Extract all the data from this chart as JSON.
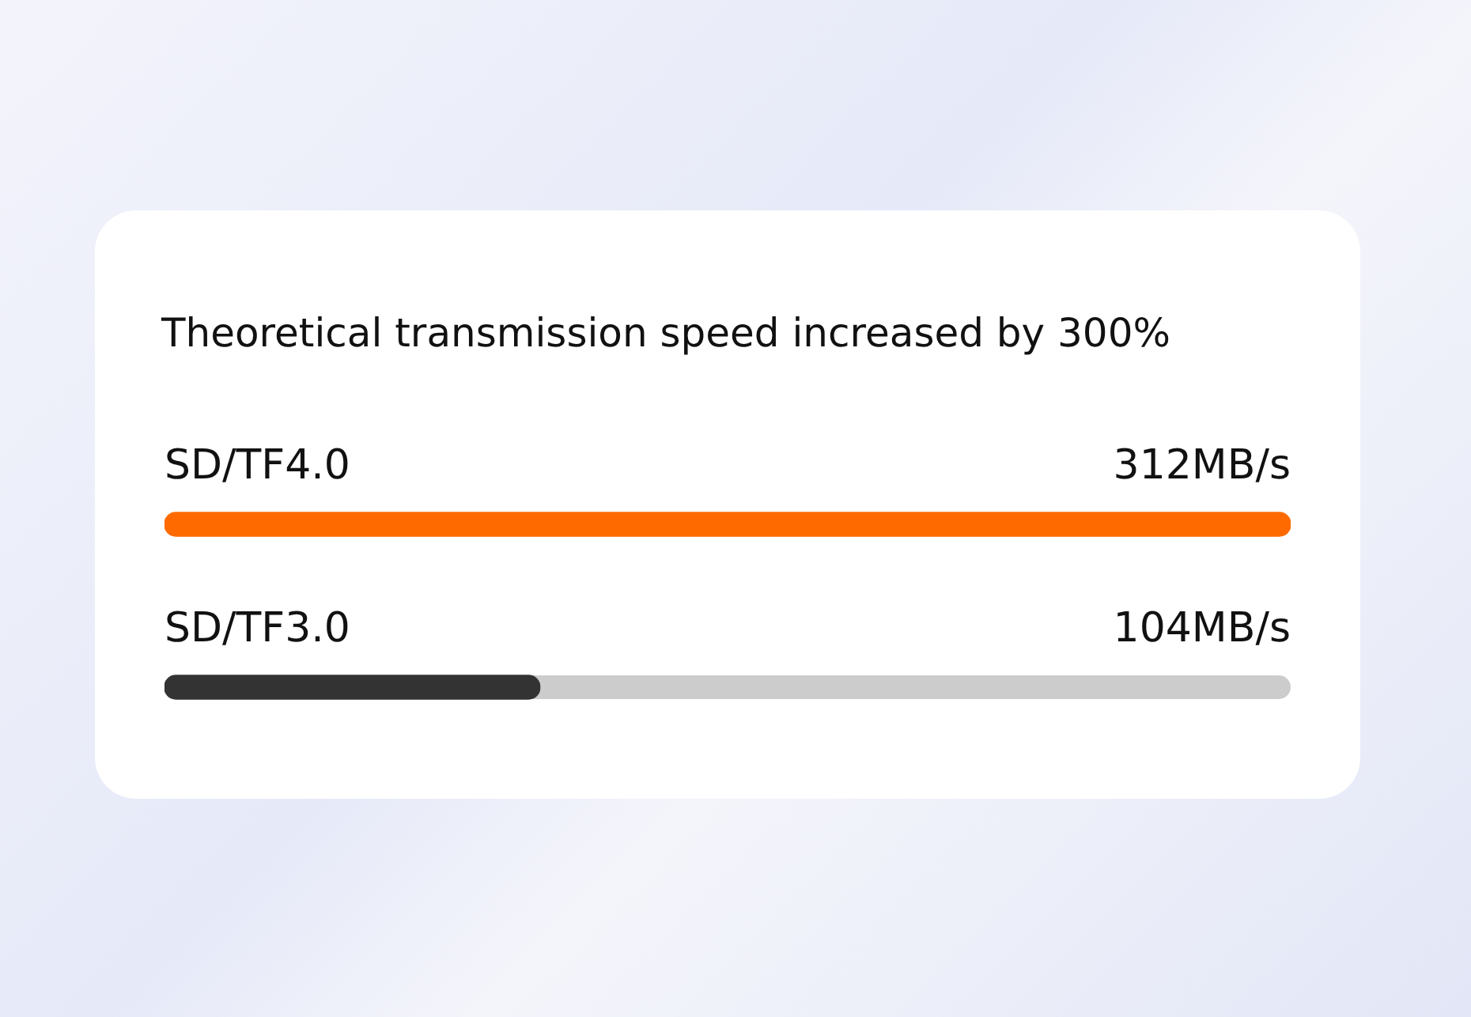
{
  "chart_data": {
    "type": "bar",
    "orientation": "horizontal",
    "title": "Theoretical transmission speed increased by 300%",
    "categories": [
      "SD/TF4.0",
      "SD/TF3.0"
    ],
    "values": [
      312,
      104
    ],
    "colors": [
      "#ff6a00",
      "#333333"
    ],
    "value_labels": [
      "312MB/s",
      "104MB/s"
    ],
    "xlim": [
      0,
      312
    ],
    "tick_labels": "y",
    "legend": false
  }
}
